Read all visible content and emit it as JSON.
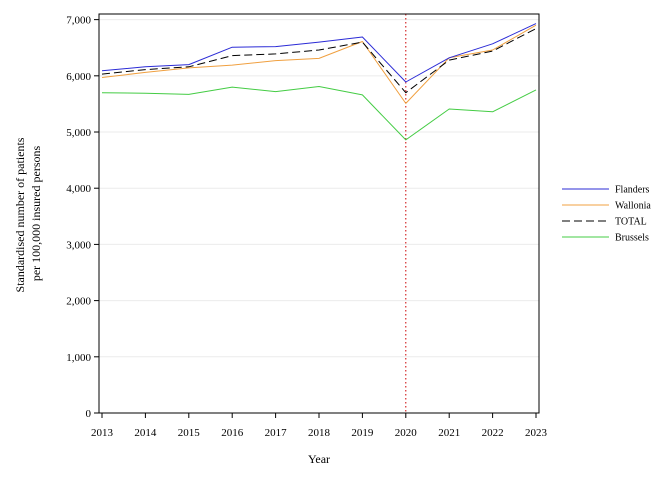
{
  "chart_data": {
    "type": "line",
    "title": "",
    "xlabel": "Year",
    "ylabel_line1": "Standardised number of patients",
    "ylabel_line2": "per 100,000 insured persons",
    "x": [
      2013,
      2014,
      2015,
      2016,
      2017,
      2018,
      2019,
      2020,
      2021,
      2022,
      2023
    ],
    "x_tick_labels": [
      "2013",
      "2014",
      "2015",
      "2016",
      "2017",
      "2018",
      "2019",
      "2020",
      "2021",
      "2022",
      "2023"
    ],
    "ylim": [
      0,
      7100
    ],
    "y_ticks": [
      0,
      1000,
      2000,
      3000,
      4000,
      5000,
      6000,
      7000
    ],
    "y_tick_labels": [
      "0",
      "1,000",
      "2,000",
      "3,000",
      "4,000",
      "5,000",
      "6,000",
      "7,000"
    ],
    "grid": "horizontal",
    "legend_position": "right",
    "reference_line": {
      "x": 2020,
      "color": "#cc0000",
      "style": "dotted"
    },
    "series": [
      {
        "name": "Flanders",
        "color": "#2b2bd6",
        "dash": "solid",
        "values": [
          6090,
          6160,
          6200,
          6510,
          6520,
          6600,
          6690,
          5890,
          6320,
          6570,
          6930
        ]
      },
      {
        "name": "Wallonia",
        "color": "#f0a040",
        "dash": "solid",
        "values": [
          5970,
          6060,
          6140,
          6190,
          6270,
          6310,
          6610,
          5510,
          6320,
          6460,
          6900
        ]
      },
      {
        "name": "TOTAL",
        "color": "#000000",
        "dash": "dashed",
        "values": [
          6030,
          6110,
          6160,
          6360,
          6390,
          6460,
          6600,
          5700,
          6280,
          6440,
          6840
        ]
      },
      {
        "name": "Brussels",
        "color": "#44cc44",
        "dash": "solid",
        "values": [
          5700,
          5690,
          5670,
          5800,
          5720,
          5810,
          5660,
          4860,
          5410,
          5360,
          5750
        ]
      }
    ]
  }
}
